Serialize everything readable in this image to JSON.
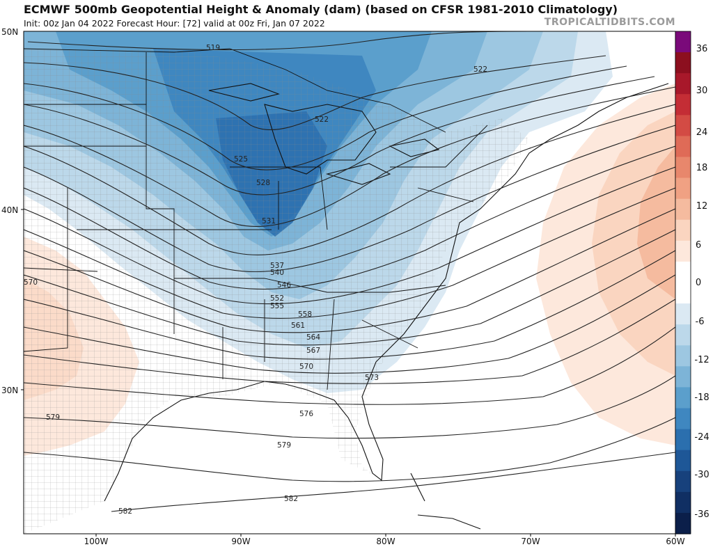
{
  "header": {
    "title": "ECMWF 500mb Geopotential Height & Anomaly (dam) (based on CFSR 1981-2010 Climatology)",
    "subtitle": "Init: 00z Jan 04 2022   Forecast Hour: [72]   valid at 00z Fri, Jan 07 2022",
    "brand": "TROPICALTIDBITS.COM"
  },
  "map": {
    "lat_labels": [
      "50N",
      "40N",
      "30N"
    ],
    "lon_labels": [
      "100W",
      "90W",
      "80W",
      "70W",
      "60W"
    ],
    "contour_labels": [
      "519",
      "522",
      "522",
      "525",
      "528",
      "531",
      "537",
      "540",
      "546",
      "552",
      "555",
      "558",
      "561",
      "564",
      "567",
      "570",
      "570",
      "573",
      "576",
      "579",
      "579",
      "582",
      "582"
    ]
  },
  "colorbar": {
    "labels": [
      "36",
      "30",
      "24",
      "18",
      "12",
      "6",
      "0",
      "-6",
      "-12",
      "-18",
      "-24",
      "-30",
      "-36"
    ],
    "colors": [
      "#7a0a7a",
      "#8c0f1f",
      "#a8182a",
      "#c42d35",
      "#d34b44",
      "#df6b57",
      "#e8876c",
      "#f0a183",
      "#f5bb9f",
      "#fad5c0",
      "#fde8dc",
      "#ffffff",
      "#ffffff",
      "#dbe9f3",
      "#bcd8ea",
      "#9dc7e1",
      "#7db4d7",
      "#5b9fcc",
      "#3f87c0",
      "#2b6fae",
      "#1e5797",
      "#17417c",
      "#102f63",
      "#0b1f4a"
    ]
  }
}
